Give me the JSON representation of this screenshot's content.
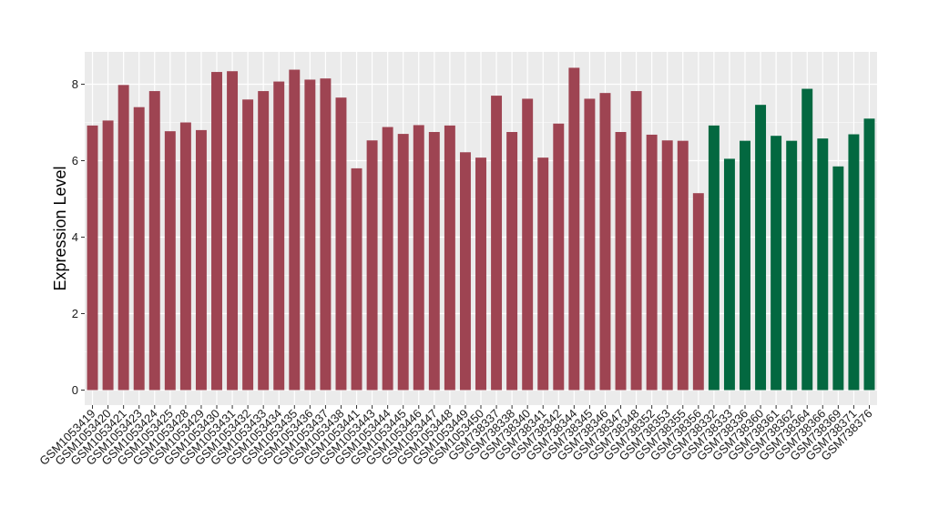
{
  "chart_data": {
    "type": "bar",
    "title": "",
    "xlabel": "",
    "ylabel": "Expression Level",
    "ylim": [
      0,
      8.8
    ],
    "yticks": [
      0,
      2,
      4,
      6,
      8
    ],
    "grid": true,
    "legend": "none",
    "colors": {
      "group1": "#9e4452",
      "group2": "#036840",
      "panel": "#ebebeb",
      "grid": "#ffffff"
    },
    "categories": [
      "GSM1053419",
      "GSM1053420",
      "GSM1053421",
      "GSM1053423",
      "GSM1053424",
      "GSM1053425",
      "GSM1053428",
      "GSM1053429",
      "GSM1053430",
      "GSM1053431",
      "GSM1053432",
      "GSM1053433",
      "GSM1053434",
      "GSM1053435",
      "GSM1053436",
      "GSM1053437",
      "GSM1053438",
      "GSM1053441",
      "GSM1053443",
      "GSM1053444",
      "GSM1053445",
      "GSM1053446",
      "GSM1053447",
      "GSM1053448",
      "GSM1053449",
      "GSM1053450",
      "GSM738337",
      "GSM738338",
      "GSM738340",
      "GSM738341",
      "GSM738342",
      "GSM738344",
      "GSM738345",
      "GSM738346",
      "GSM738347",
      "GSM738348",
      "GSM738352",
      "GSM738353",
      "GSM738355",
      "GSM738356",
      "GSM738332",
      "GSM738333",
      "GSM738336",
      "GSM738360",
      "GSM738361",
      "GSM738362",
      "GSM738364",
      "GSM738366",
      "GSM738369",
      "GSM738371",
      "GSM738376"
    ],
    "values": [
      6.92,
      7.05,
      7.98,
      7.4,
      7.82,
      6.77,
      7.0,
      6.8,
      8.32,
      8.34,
      7.6,
      7.82,
      8.07,
      8.38,
      8.12,
      8.15,
      7.65,
      5.8,
      6.53,
      6.88,
      6.7,
      6.93,
      6.75,
      6.92,
      6.22,
      6.08,
      7.7,
      6.75,
      7.62,
      6.08,
      6.97,
      8.43,
      7.62,
      7.77,
      6.75,
      7.82,
      6.68,
      6.53,
      6.52,
      5.15,
      6.92,
      6.05,
      6.52,
      7.46,
      6.65,
      6.52,
      7.88,
      6.58,
      5.85,
      6.69,
      7.1
    ],
    "groups": [
      1,
      1,
      1,
      1,
      1,
      1,
      1,
      1,
      1,
      1,
      1,
      1,
      1,
      1,
      1,
      1,
      1,
      1,
      1,
      1,
      1,
      1,
      1,
      1,
      1,
      1,
      1,
      1,
      1,
      1,
      1,
      1,
      1,
      1,
      1,
      1,
      1,
      1,
      1,
      1,
      2,
      2,
      2,
      2,
      2,
      2,
      2,
      2,
      2,
      2,
      2
    ]
  }
}
